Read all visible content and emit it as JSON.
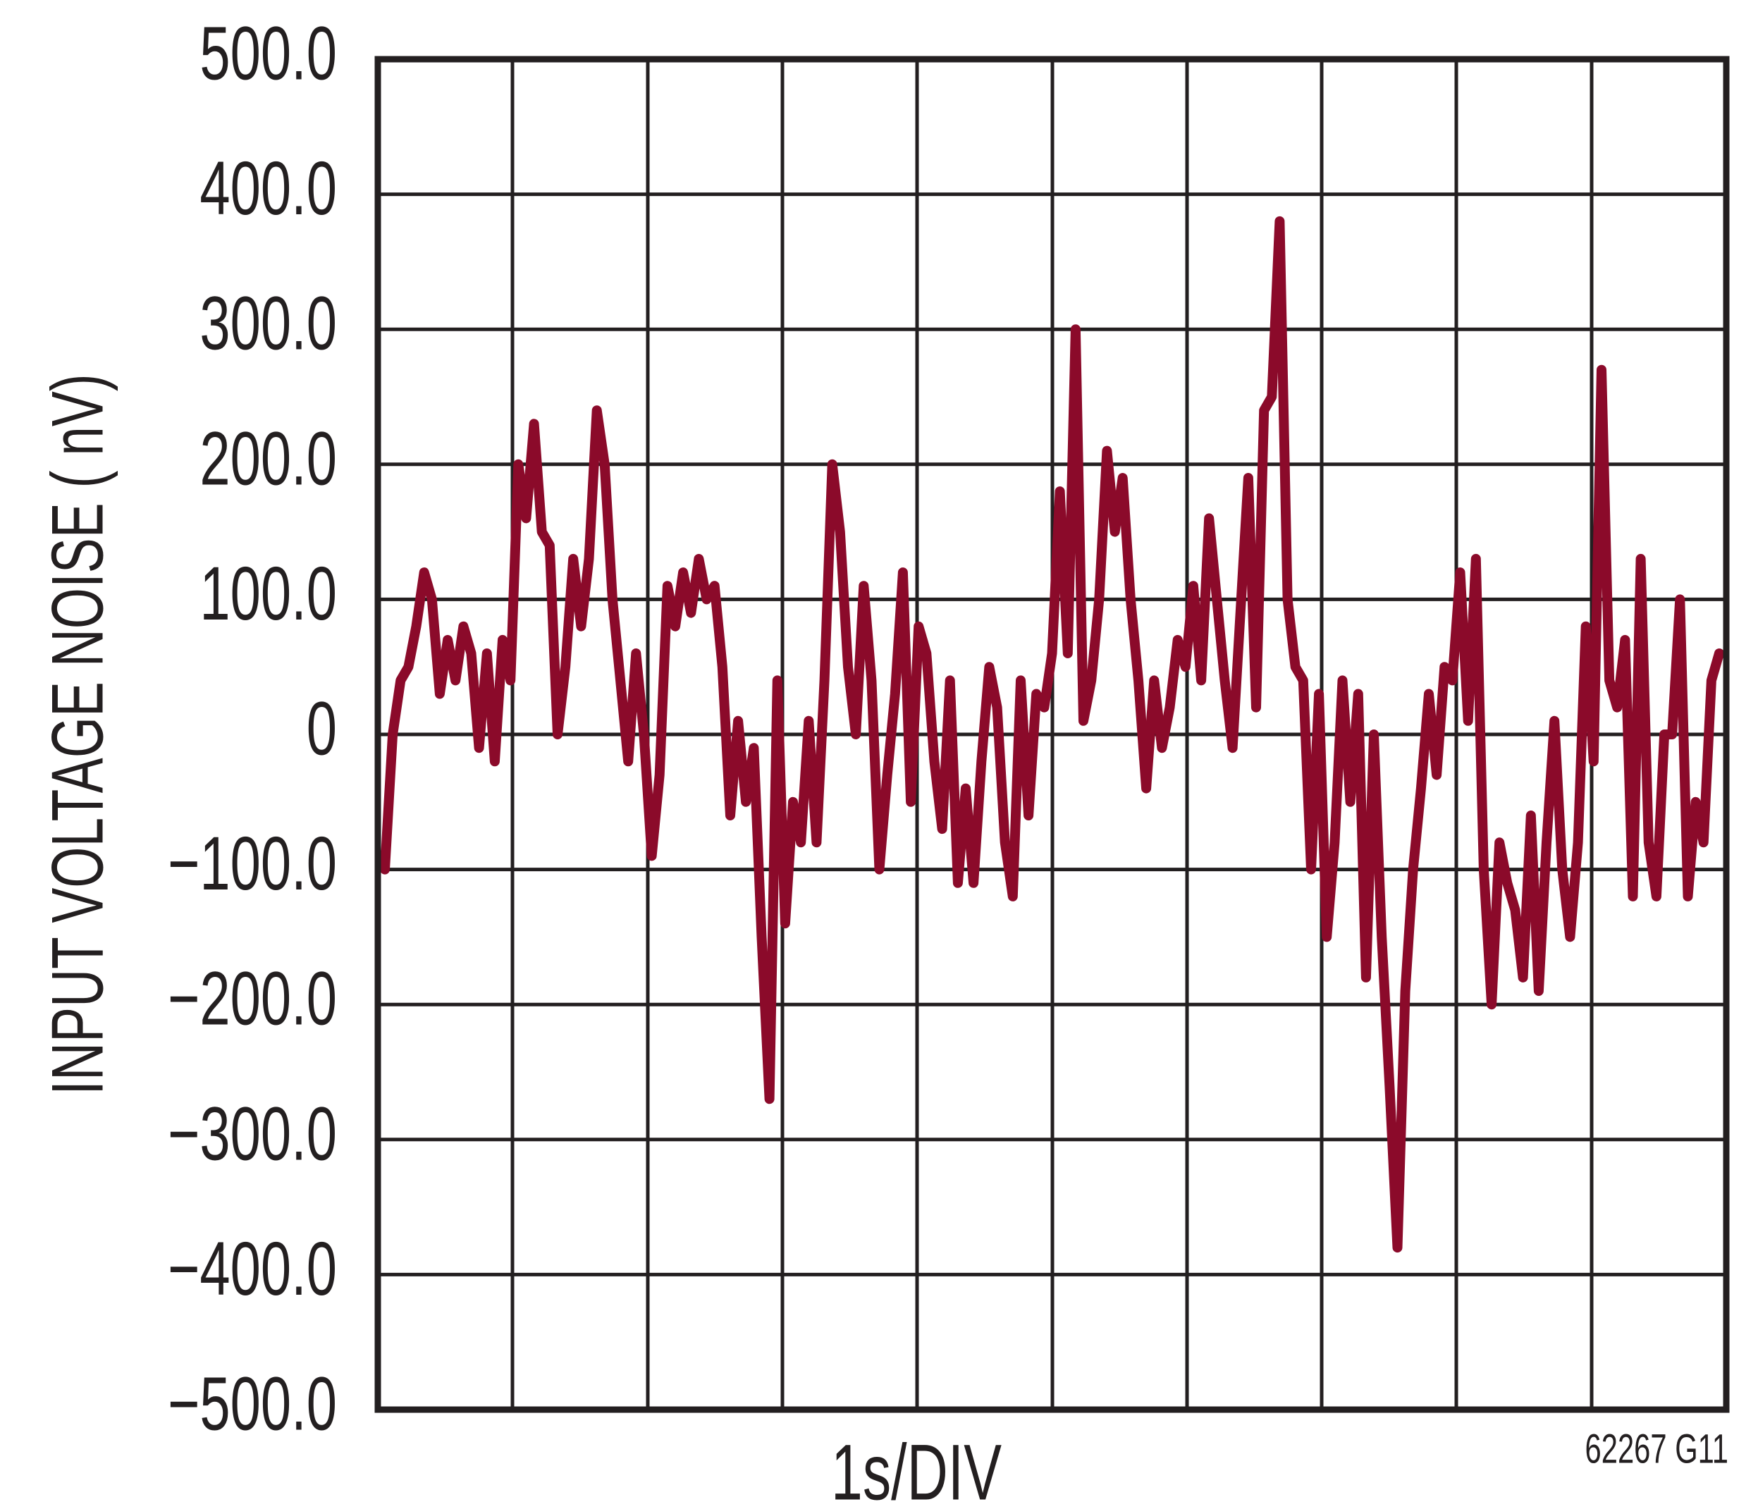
{
  "chart_data": {
    "type": "line",
    "ylabel": "INPUT VOLTAGE NOISE ( nV)",
    "xlabel": "1s/DIV",
    "note": "62267 G11",
    "ylim": [
      -500,
      500
    ],
    "yticks": [
      {
        "value": 500,
        "label": "500.0"
      },
      {
        "value": 400,
        "label": "400.0"
      },
      {
        "value": 300,
        "label": "300.0"
      },
      {
        "value": 200,
        "label": "200.0"
      },
      {
        "value": 100,
        "label": "100.0"
      },
      0,
      {
        "value": -100,
        "label": "−100.0"
      },
      {
        "value": -200,
        "label": "−200.0"
      },
      {
        "value": -300,
        "label": "−300.0"
      },
      {
        "value": -400,
        "label": "−400.0"
      },
      {
        "value": -500,
        "label": "−500.0"
      }
    ],
    "grid": true,
    "color": "#8b0a2a",
    "values": [
      -100,
      0,
      40,
      50,
      80,
      120,
      100,
      30,
      70,
      40,
      80,
      60,
      -10,
      60,
      -20,
      70,
      40,
      200,
      160,
      230,
      150,
      140,
      0,
      50,
      130,
      80,
      130,
      240,
      200,
      100,
      40,
      -20,
      60,
      0,
      -90,
      -30,
      110,
      80,
      120,
      90,
      130,
      100,
      110,
      50,
      -60,
      10,
      -50,
      -10,
      -150,
      -270,
      40,
      -140,
      -50,
      -80,
      10,
      -80,
      40,
      200,
      150,
      50,
      0,
      110,
      40,
      -100,
      -30,
      30,
      120,
      -50,
      80,
      60,
      -20,
      -70,
      40,
      -110,
      -40,
      -110,
      -20,
      50,
      20,
      -80,
      -120,
      40,
      -60,
      30,
      20,
      60,
      180,
      60,
      300,
      10,
      40,
      100,
      210,
      150,
      190,
      100,
      40,
      -40,
      40,
      -10,
      20,
      70,
      50,
      110,
      40,
      160,
      100,
      40,
      -10,
      90,
      190,
      20,
      240,
      250,
      380,
      100,
      50,
      40,
      -100,
      30,
      -150,
      -80,
      40,
      -50,
      30,
      -180,
      0,
      -150,
      -260,
      -380,
      -190,
      -100,
      -40,
      30,
      -30,
      50,
      40,
      120,
      10,
      130,
      -100,
      -200,
      -80,
      -110,
      -130,
      -180,
      -60,
      -190,
      -80,
      10,
      -100,
      -150,
      -80,
      80,
      -20,
      270,
      40,
      20,
      70,
      -120,
      130,
      -80,
      -120,
      0,
      0,
      100,
      -120,
      -50,
      -80,
      40,
      60
    ]
  }
}
